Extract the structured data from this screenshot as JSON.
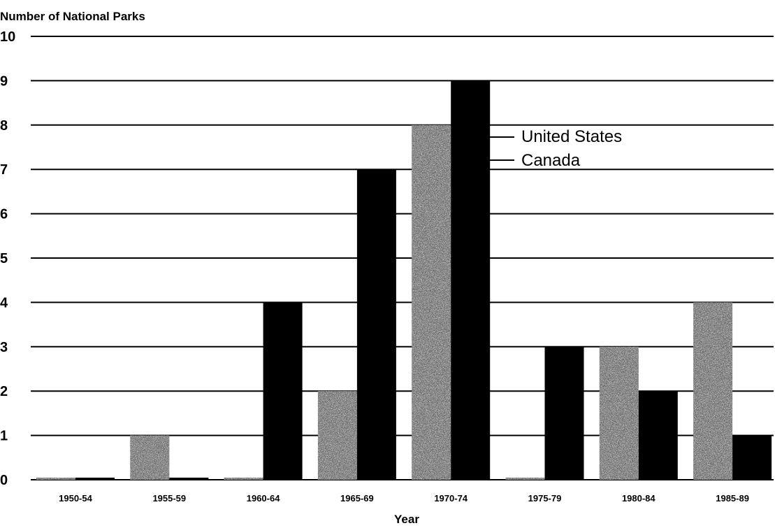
{
  "chart_data": {
    "type": "bar",
    "ylabel": "Number of National Parks",
    "xlabel": "Year",
    "categories": [
      "1950-54",
      "1955-59",
      "1960-64",
      "1965-69",
      "1970-74",
      "1975-79",
      "1980-84",
      "1985-89"
    ],
    "series": [
      {
        "name": "United States",
        "values": [
          0,
          1,
          0,
          2,
          8,
          0,
          3,
          4
        ],
        "color": "#6e6e6e"
      },
      {
        "name": "Canada",
        "values": [
          0,
          0,
          4,
          7,
          9,
          3,
          2,
          1
        ],
        "color": "#000000"
      }
    ],
    "ylim": [
      0,
      10
    ],
    "yticks": [
      "0",
      "1",
      "2",
      "3",
      "4",
      "5",
      "6",
      "7",
      "8",
      "9",
      "10"
    ],
    "grid": true,
    "legend_position": "top-right"
  }
}
